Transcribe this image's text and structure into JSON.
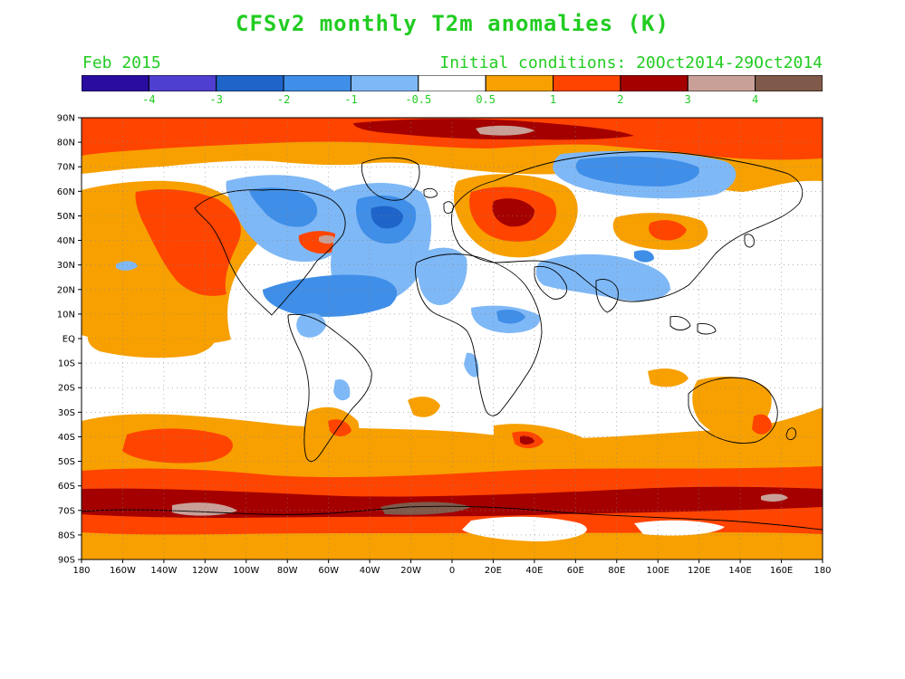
{
  "title": "CFSv2 monthly T2m anomalies (K)",
  "forecast_month": "Feb 2015",
  "initial_conditions": "Initial conditions: 20Oct2014-29Oct2014",
  "colors": {
    "text": "#22cc22",
    "bins": [
      "#2a0da0",
      "#4f3fd0",
      "#1f64c8",
      "#3f8ee8",
      "#7fb8f6",
      "#ffffff",
      "#f7a000",
      "#ff4400",
      "#a40000",
      "#c8a098",
      "#7f5a4a"
    ]
  },
  "colorbar": {
    "labels": [
      "-4",
      "-3",
      "-2",
      "-1",
      "-0.5",
      "0.5",
      "1",
      "2",
      "3",
      "4"
    ]
  },
  "axes": {
    "lat_labels": [
      "90N",
      "80N",
      "70N",
      "60N",
      "50N",
      "40N",
      "30N",
      "20N",
      "10N",
      "EQ",
      "10S",
      "20S",
      "30S",
      "40S",
      "50S",
      "60S",
      "70S",
      "80S",
      "90S"
    ],
    "lon_labels": [
      "180",
      "160W",
      "140W",
      "120W",
      "100W",
      "80W",
      "60W",
      "40W",
      "20W",
      "0",
      "20E",
      "40E",
      "60E",
      "80E",
      "100E",
      "120E",
      "140E",
      "160E",
      "180"
    ]
  }
}
